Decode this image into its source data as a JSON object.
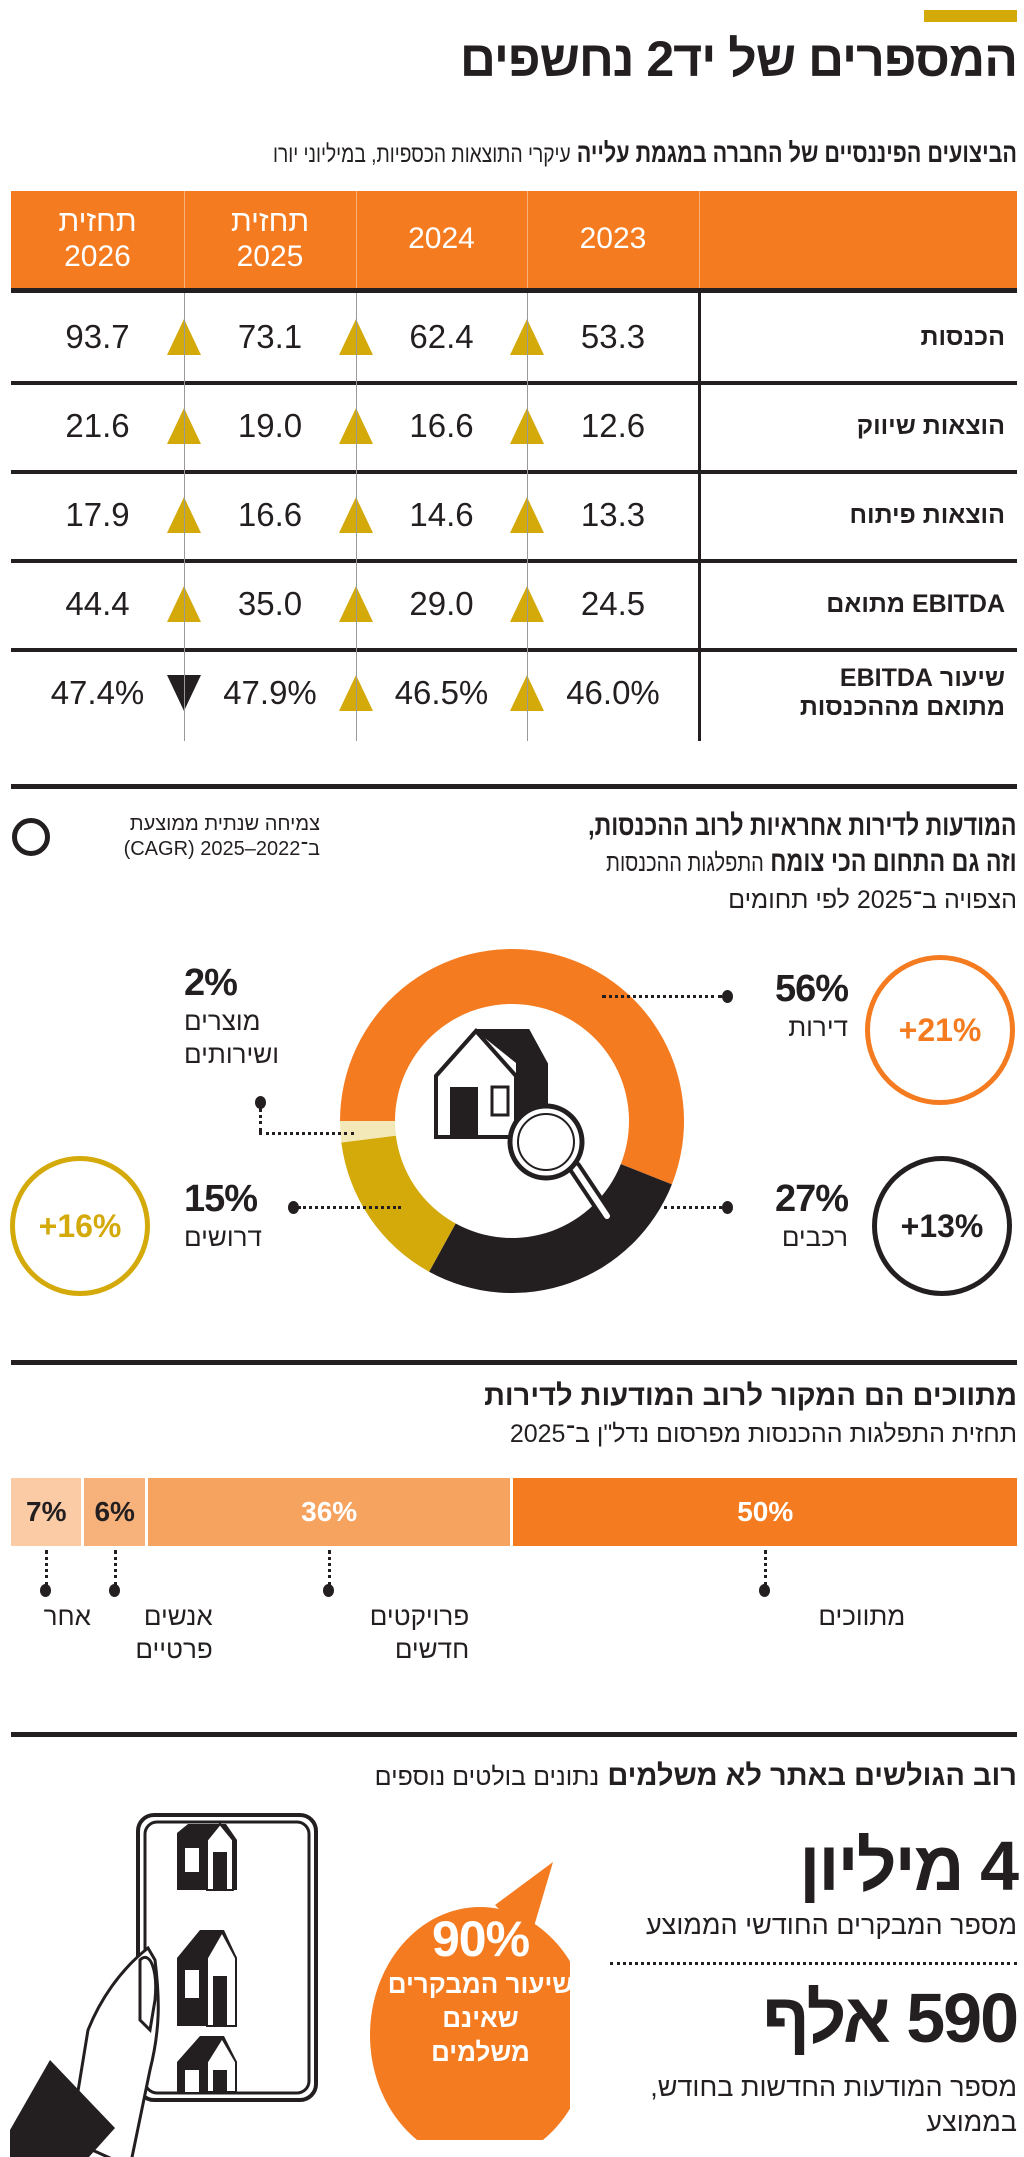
{
  "header": {
    "title": "המספרים של יד2 נחשפים",
    "accent_color": "#d4a90a"
  },
  "financials": {
    "title": "הביצועים הפיננסיים של החברה במגמת עלייה",
    "subtitle": "עיקרי התוצאות הכספיות, במיליוני יורו",
    "columns": [
      "2023",
      "2024",
      "תחזית\n2025",
      "תחזית\n2026"
    ],
    "rows": [
      {
        "label": "הכנסות",
        "values": [
          "53.3",
          "62.4",
          "73.1",
          "93.7"
        ],
        "trend": [
          "up",
          "up",
          "up"
        ]
      },
      {
        "label": "הוצאות שיווק",
        "values": [
          "12.6",
          "16.6",
          "19.0",
          "21.6"
        ],
        "trend": [
          "up",
          "up",
          "up"
        ]
      },
      {
        "label": "הוצאות פיתוח",
        "values": [
          "13.3",
          "14.6",
          "16.6",
          "17.9"
        ],
        "trend": [
          "up",
          "up",
          "up"
        ]
      },
      {
        "label": "EBITDA מתואם",
        "values": [
          "24.5",
          "29.0",
          "35.0",
          "44.4"
        ],
        "trend": [
          "up",
          "up",
          "up"
        ]
      },
      {
        "label": "שיעור EBITDA\nמתואם מההכנסות",
        "values": [
          "46.0%",
          "46.5%",
          "47.9%",
          "47.4%"
        ],
        "trend": [
          "up",
          "up",
          "down"
        ]
      }
    ],
    "header_color": "#f47b20"
  },
  "revenue_split": {
    "title_line1": "המודעות לדירות אחראיות לרוב ההכנסות,",
    "title_line2_bold": "וזה גם התחום הכי צומח",
    "title_line2_light": "התפלגות ההכנסות",
    "subtitle": "הצפויה ב־2025 לפי תחומים",
    "legend_line1": "צמיחה שנתית ממוצעת",
    "legend_line2": "ב־2022–2025 (CAGR)",
    "center_icon": "house-magnifier-icon"
  },
  "membership_split": {
    "title": "מתווכים הם המקור לרוב המודעות לדירות",
    "subtitle": "תחזית התפלגות ההכנסות מפרסום נדל\"ן ב־2025"
  },
  "visitors": {
    "title_bold": "רוב הגולשים באתר לא משלמים",
    "title_light": "נתונים בולטים נוספים",
    "stat1_value": "4 מיליון",
    "stat1_label": "מספר המבקרים החודשי הממוצע",
    "stat2_value": "590 אלף",
    "stat2_label": "מספר המודעות החדשות בחודש,\nבממוצע",
    "bubble_value": "90%",
    "bubble_label": "שיעור המבקרים\nשאינם\nמשלמים",
    "illustration": "hand-holding-phone-icon"
  },
  "chart_data": [
    {
      "type": "pie",
      "variant": "donut",
      "categories": [
        "דירות",
        "רכבים",
        "דרושים",
        "מוצרים ושירותים"
      ],
      "values": [
        56,
        27,
        15,
        2
      ],
      "labels": [
        "56%",
        "27%",
        "15%",
        "2%"
      ],
      "colors": [
        "#f47b20",
        "#231f20",
        "#d4a90a",
        "#f3e9b8"
      ],
      "growth_cagr": [
        "+21%",
        "+13%",
        "+16%",
        null
      ]
    },
    {
      "type": "bar",
      "variant": "stacked-100",
      "categories": [
        "מתווכים",
        "פרויקטים חדשים",
        "אנשים פרטיים",
        "אחר"
      ],
      "values": [
        50,
        36,
        6,
        7
      ],
      "labels": [
        "50%",
        "36%",
        "6%",
        "7%"
      ],
      "colors": [
        "#f47b20",
        "#f6a360",
        "#f7b27c",
        "#fbcba6"
      ]
    }
  ]
}
